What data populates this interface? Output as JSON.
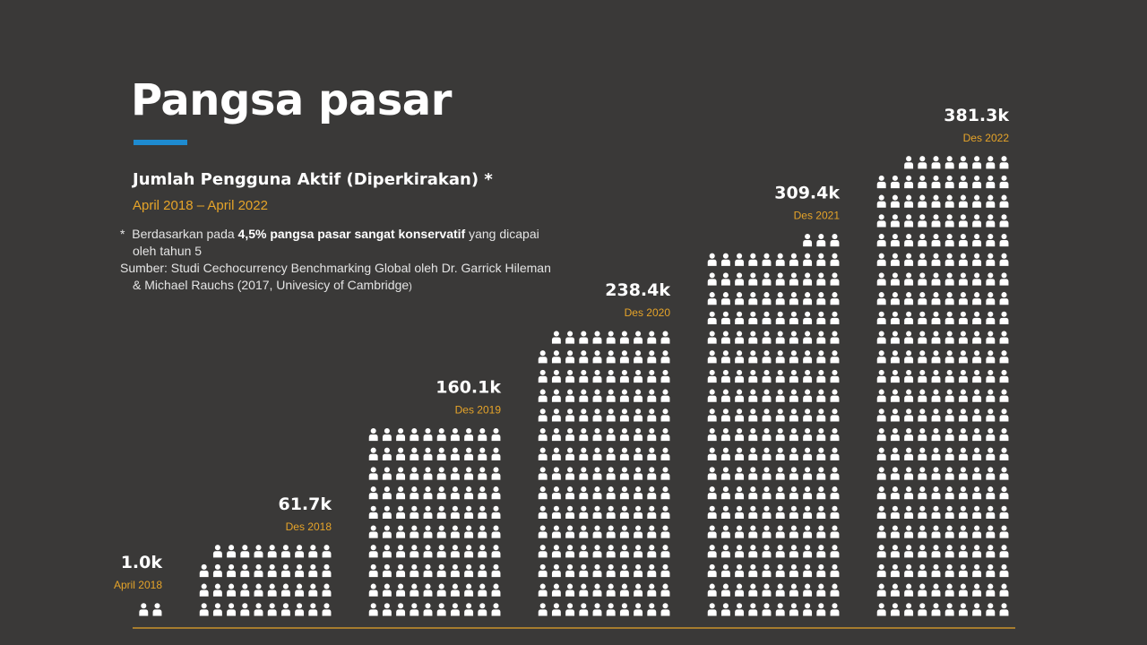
{
  "header": {
    "title": "Pangsa pasar",
    "subtitle": "Jumlah Pengguna Aktif (Diperkirakan)  *",
    "date_range": "April 2018 – April 2022",
    "accent_color": "#1e8bd0"
  },
  "notes": {
    "bullet": "*",
    "pre": "Berdasarkan pada ",
    "bold": "4,5% pangsa pasar sangat konservatif",
    "post": " yang dicapai oleh tahun 5",
    "source_a": "Sumber: Studi Cechocurrency Benchmarking Global oleh Dr. Garrick Hileman & Michael Rauchs (2017, Univesicy of Cambridge",
    "source_b": ")"
  },
  "chart_data": {
    "type": "bar",
    "style": "pictograph (person icons)",
    "categories": [
      "April 2018",
      "Des 2018",
      "Des 2019",
      "Des 2020",
      "Des 2021",
      "Des 2022"
    ],
    "value_labels": [
      "1.0k",
      "61.7k",
      "160.1k",
      "238.4k",
      "309.4k",
      "381.3k"
    ],
    "values": [
      1.0,
      61.7,
      160.1,
      238.4,
      309.4,
      381.3
    ],
    "unit": "k",
    "icon": "person-icon",
    "icon_color": "#ffffff",
    "value_color": "#ffffff",
    "category_color": "#e6a429",
    "baseline_color": "#e6a429"
  }
}
